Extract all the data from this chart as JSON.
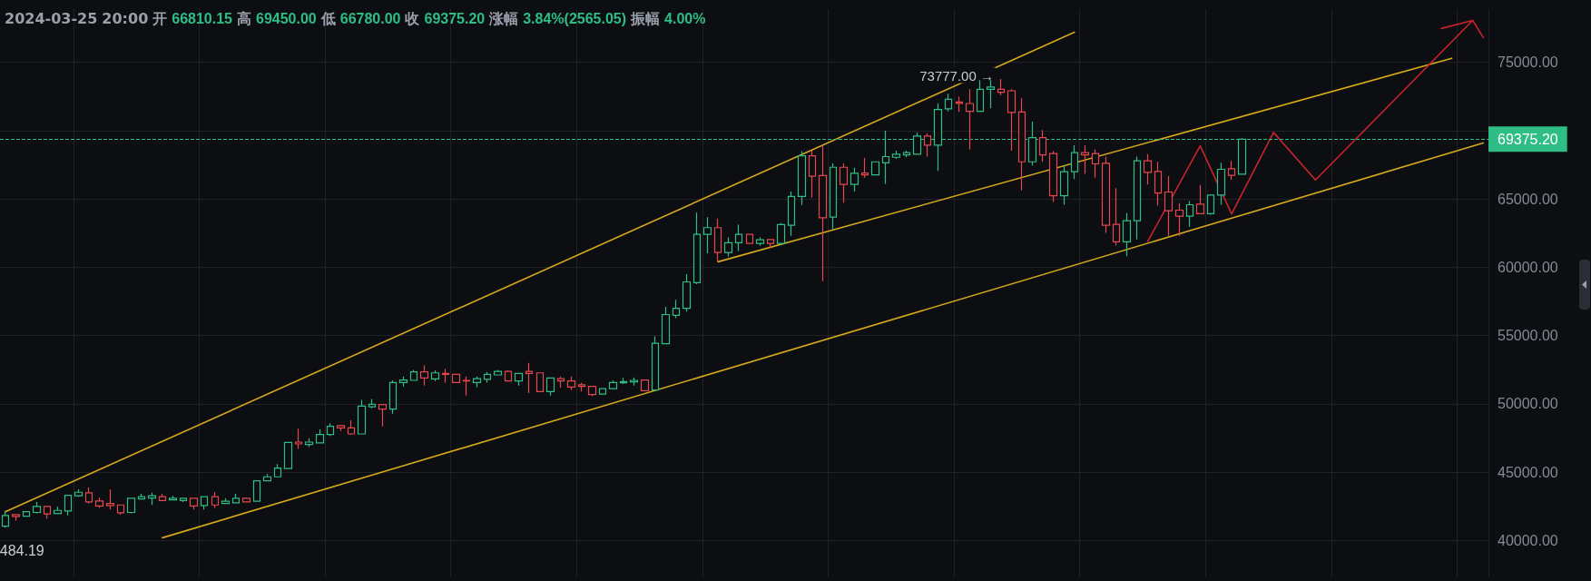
{
  "chart_data": {
    "type": "candlestick",
    "title": "2024-03-25 20:00 开 66810.15 高 69450.00 低 66780.00 收 69375.20 涨幅 3.84%(2565.05) 振幅 4.00%",
    "categories": [
      null,
      null,
      null,
      null,
      null,
      null,
      null,
      null,
      null,
      null,
      null,
      null,
      null,
      null,
      null,
      null,
      null,
      null,
      null,
      null,
      null,
      null,
      null,
      null,
      null,
      null,
      null,
      null,
      null,
      null,
      null,
      null,
      null,
      null,
      null,
      null,
      null,
      null,
      null,
      null,
      null,
      null,
      null,
      null,
      null,
      null,
      null,
      null,
      null,
      null,
      null,
      null,
      null,
      null,
      null,
      null,
      null,
      null,
      null,
      null,
      null,
      null,
      null,
      null,
      null,
      null,
      null,
      null,
      null,
      null,
      null,
      null,
      null,
      null,
      null,
      null,
      null,
      null,
      null,
      null,
      null,
      null,
      null,
      null,
      null,
      null,
      null,
      null,
      null,
      null,
      null,
      null,
      null,
      null,
      null,
      null,
      null,
      null,
      null,
      null,
      null,
      null,
      null,
      null,
      null,
      null,
      null,
      null,
      null,
      null,
      null,
      null,
      null,
      null,
      null,
      null,
      null,
      null,
      null,
      null,
      null,
      null,
      null,
      null,
      null,
      null,
      null,
      null,
      null,
      null,
      null,
      null,
      null,
      null,
      null,
      null,
      null,
      null,
      null,
      null,
      null,
      null
    ],
    "ylim": [
      37300,
      78900
    ],
    "yticks": [
      {
        "value": 40000,
        "label": "40000.00"
      },
      {
        "value": 45000,
        "label": "45000.00"
      },
      {
        "value": 50000,
        "label": "50000.00"
      },
      {
        "value": 55000,
        "label": "55000.00"
      },
      {
        "value": 60000,
        "label": "60000.00"
      },
      {
        "value": 65000,
        "label": "65000.00"
      },
      {
        "value": 70000,
        "label": null
      },
      {
        "value": 75000,
        "label": "75000.00"
      }
    ],
    "grid": true,
    "tick_labels": "y",
    "marker": "none",
    "line_style": "solid",
    "ref_lines": [
      {
        "axis": "y",
        "value": 69375.2,
        "label": "69375.20",
        "color": "#2ebd85",
        "line_style": "dashed"
      }
    ],
    "annotations": [
      "73777.00 →",
      "484.19"
    ],
    "series": [
      {
        "ohlc": [
          [
            41050,
            42160,
            40940,
            41830
          ],
          [
            41890,
            41940,
            41450,
            41760
          ],
          [
            41780,
            42150,
            41740,
            42110
          ],
          [
            42050,
            42820,
            41980,
            42490
          ],
          [
            42490,
            42530,
            41610,
            41940
          ],
          [
            41980,
            42490,
            41940,
            42200
          ],
          [
            42160,
            43330,
            41830,
            43310
          ],
          [
            43270,
            43750,
            43200,
            43530
          ],
          [
            43490,
            43880,
            42710,
            42820
          ],
          [
            42890,
            43150,
            42380,
            42530
          ],
          [
            42710,
            43750,
            42270,
            42560
          ],
          [
            42600,
            42600,
            41890,
            42030
          ],
          [
            42050,
            43090,
            41980,
            43090
          ],
          [
            43040,
            43420,
            43000,
            43200
          ],
          [
            43110,
            43490,
            42600,
            43270
          ],
          [
            43200,
            43420,
            42930,
            42930
          ],
          [
            42980,
            43260,
            42930,
            43090
          ],
          [
            42930,
            43090,
            42820,
            43090
          ],
          [
            43090,
            43090,
            42270,
            42530
          ],
          [
            42560,
            43200,
            42270,
            43200
          ],
          [
            43200,
            43550,
            42380,
            42600
          ],
          [
            42710,
            43090,
            42710,
            42870
          ],
          [
            42760,
            43420,
            42760,
            43090
          ],
          [
            43090,
            43150,
            42820,
            42820
          ],
          [
            42870,
            44370,
            42870,
            44370
          ],
          [
            44370,
            44860,
            44370,
            44660
          ],
          [
            44660,
            45590,
            44660,
            45300
          ],
          [
            45260,
            47180,
            45260,
            47180
          ],
          [
            47200,
            48180,
            46700,
            47070
          ],
          [
            47030,
            47470,
            46850,
            47200
          ],
          [
            47140,
            48140,
            47140,
            47760
          ],
          [
            47760,
            48580,
            47650,
            48350
          ],
          [
            48400,
            48470,
            48020,
            48240
          ],
          [
            48240,
            48800,
            47740,
            47800
          ],
          [
            47800,
            50300,
            47800,
            49840
          ],
          [
            49790,
            50350,
            49680,
            49970
          ],
          [
            49950,
            49950,
            48350,
            49620
          ],
          [
            49620,
            51720,
            49280,
            51560
          ],
          [
            51560,
            52010,
            51280,
            51740
          ],
          [
            51720,
            52490,
            51720,
            52340
          ],
          [
            52340,
            52820,
            51340,
            51900
          ],
          [
            51830,
            52450,
            51670,
            52270
          ],
          [
            52230,
            52560,
            51560,
            52160
          ],
          [
            52160,
            52160,
            51560,
            51560
          ],
          [
            51720,
            52010,
            50610,
            51680
          ],
          [
            51560,
            52010,
            51230,
            51850
          ],
          [
            51790,
            52340,
            51560,
            52160
          ],
          [
            52120,
            52490,
            52120,
            52380
          ],
          [
            52380,
            52450,
            51680,
            51680
          ],
          [
            51680,
            52230,
            51340,
            52230
          ],
          [
            52380,
            53000,
            50790,
            52230
          ],
          [
            52270,
            52300,
            50900,
            50900
          ],
          [
            50900,
            51900,
            50610,
            51900
          ],
          [
            51850,
            52010,
            51190,
            51680
          ],
          [
            51680,
            52010,
            51010,
            51230
          ],
          [
            51390,
            51560,
            50900,
            51280
          ],
          [
            51280,
            51280,
            50570,
            50680
          ],
          [
            50720,
            51120,
            50720,
            51120
          ],
          [
            51120,
            51720,
            51120,
            51560
          ],
          [
            51540,
            51900,
            51450,
            51630
          ],
          [
            51610,
            51940,
            51340,
            51720
          ],
          [
            51740,
            51740,
            50970,
            50970
          ],
          [
            51010,
            54950,
            51010,
            54440
          ],
          [
            54400,
            57100,
            54400,
            56540
          ],
          [
            56480,
            57610,
            56280,
            56990
          ],
          [
            56990,
            59490,
            56760,
            58930
          ],
          [
            58870,
            64000,
            58760,
            62410
          ],
          [
            62410,
            63670,
            61020,
            62900
          ],
          [
            62900,
            63560,
            60420,
            61080
          ],
          [
            61080,
            62190,
            60790,
            61790
          ],
          [
            61790,
            63120,
            61190,
            62410
          ],
          [
            62410,
            62410,
            61750,
            61750
          ],
          [
            61750,
            62190,
            61590,
            62010
          ],
          [
            62030,
            62030,
            61410,
            61750
          ],
          [
            61750,
            63230,
            61750,
            63120
          ],
          [
            63070,
            65550,
            62300,
            65180
          ],
          [
            65180,
            68500,
            64560,
            68160
          ],
          [
            68160,
            68540,
            65110,
            66660
          ],
          [
            66720,
            68890,
            58980,
            63630
          ],
          [
            63670,
            67610,
            62790,
            67320
          ],
          [
            67320,
            67610,
            64730,
            66060
          ],
          [
            66060,
            67280,
            65550,
            66880
          ],
          [
            66900,
            68010,
            66550,
            66770
          ],
          [
            66770,
            67720,
            66770,
            67720
          ],
          [
            67650,
            70000,
            66110,
            68100
          ],
          [
            68050,
            68540,
            67940,
            68270
          ],
          [
            68230,
            68540,
            68050,
            68390
          ],
          [
            68270,
            69870,
            68270,
            69600
          ],
          [
            69600,
            69820,
            68100,
            68940
          ],
          [
            68940,
            72000,
            67060,
            71550
          ],
          [
            71600,
            72700,
            71400,
            72300
          ],
          [
            72100,
            72480,
            71370,
            72000
          ],
          [
            71990,
            73030,
            68610,
            71420
          ],
          [
            71420,
            73700,
            71420,
            73030
          ],
          [
            73030,
            73700,
            71640,
            73190
          ],
          [
            73030,
            73777,
            72590,
            72810
          ],
          [
            72920,
            73030,
            68540,
            71330
          ],
          [
            71370,
            72370,
            65620,
            67720
          ],
          [
            67720,
            70660,
            67430,
            69490
          ],
          [
            69490,
            70050,
            67720,
            68230
          ],
          [
            68320,
            68500,
            64780,
            65240
          ],
          [
            65240,
            67430,
            64580,
            66990
          ],
          [
            66990,
            68940,
            66460,
            68390
          ],
          [
            68390,
            68940,
            66840,
            68230
          ],
          [
            68320,
            68610,
            66550,
            67570
          ],
          [
            67610,
            68100,
            62520,
            63080
          ],
          [
            63140,
            65800,
            61590,
            61860
          ],
          [
            61860,
            63960,
            60800,
            63410
          ],
          [
            63410,
            68100,
            62030,
            67790
          ],
          [
            67790,
            68280,
            66060,
            66950
          ],
          [
            67010,
            67720,
            64510,
            65440
          ],
          [
            65510,
            66680,
            62300,
            64140
          ],
          [
            64180,
            64690,
            62300,
            63740
          ],
          [
            63740,
            64850,
            62960,
            64580
          ],
          [
            64620,
            66020,
            63920,
            63920
          ],
          [
            63920,
            65290,
            63850,
            65290
          ],
          [
            65290,
            67650,
            64580,
            67170
          ],
          [
            67210,
            67790,
            66400,
            66730
          ],
          [
            66810.15,
            69450,
            66780,
            69375.2
          ],
          null,
          null,
          null,
          null,
          null,
          null,
          null,
          null,
          null,
          null,
          null,
          null,
          null,
          null,
          null,
          null,
          null,
          null,
          null,
          null,
          null,
          null,
          null
        ],
        "colors": [
          "#2ebd85",
          "#e5474d",
          "#2ebd85",
          "#2ebd85",
          "#e5474d",
          "#2ebd85",
          "#2ebd85",
          "#2ebd85",
          "#e5474d",
          "#e5474d",
          "#e5474d",
          "#e5474d",
          "#2ebd85",
          "#2ebd85",
          "#2ebd85",
          "#e5474d",
          "#2ebd85",
          "#2ebd85",
          "#e5474d",
          "#2ebd85",
          "#e5474d",
          "#2ebd85",
          "#2ebd85",
          "#e5474d",
          "#2ebd85",
          "#2ebd85",
          "#2ebd85",
          "#2ebd85",
          "#e5474d",
          "#2ebd85",
          "#2ebd85",
          "#2ebd85",
          "#e5474d",
          "#e5474d",
          "#2ebd85",
          "#2ebd85",
          "#e5474d",
          "#2ebd85",
          "#2ebd85",
          "#2ebd85",
          "#e5474d",
          "#2ebd85",
          "#e5474d",
          "#e5474d",
          "#e5474d",
          "#2ebd85",
          "#2ebd85",
          "#2ebd85",
          "#e5474d",
          "#2ebd85",
          "#e5474d",
          "#e5474d",
          "#2ebd85",
          "#e5474d",
          "#e5474d",
          "#e5474d",
          "#e5474d",
          "#2ebd85",
          "#2ebd85",
          "#2ebd85",
          "#2ebd85",
          "#e5474d",
          "#2ebd85",
          "#2ebd85",
          "#2ebd85",
          "#2ebd85",
          "#2ebd85",
          "#2ebd85",
          "#e5474d",
          "#2ebd85",
          "#2ebd85",
          "#e5474d",
          "#2ebd85",
          "#e5474d",
          "#2ebd85",
          "#2ebd85",
          "#2ebd85",
          "#e5474d",
          "#e5474d",
          "#2ebd85",
          "#e5474d",
          "#2ebd85",
          "#e5474d",
          "#2ebd85",
          "#2ebd85",
          "#2ebd85",
          "#2ebd85",
          "#2ebd85",
          "#e5474d",
          "#2ebd85",
          "#2ebd85",
          "#e5474d",
          "#e5474d",
          "#2ebd85",
          "#2ebd85",
          "#e5474d",
          "#e5474d",
          "#e5474d",
          "#2ebd85",
          "#e5474d",
          "#e5474d",
          "#2ebd85",
          "#2ebd85",
          "#e5474d",
          "#e5474d",
          "#e5474d",
          "#e5474d",
          "#2ebd85",
          "#2ebd85",
          "#e5474d",
          "#e5474d",
          "#e5474d",
          "#e5474d",
          "#2ebd85",
          "#e5474d",
          "#2ebd85",
          "#2ebd85",
          "#e5474d",
          "#2ebd85",
          null,
          null,
          null,
          null,
          null,
          null,
          null,
          null,
          null,
          null,
          null,
          null,
          null,
          null,
          null,
          null,
          null,
          null,
          null,
          null,
          null,
          null,
          null
        ]
      },
      {
        "type": "line",
        "color": "#d6a91a",
        "values": [
          42100,
          null,
          null,
          null,
          null,
          null,
          null,
          null,
          null,
          null,
          null,
          null,
          null,
          null,
          null,
          null,
          null,
          null,
          null,
          null,
          null,
          null,
          null,
          null,
          null,
          null,
          null,
          null,
          null,
          null,
          null,
          null,
          null,
          null,
          null,
          null,
          null,
          null,
          null,
          null,
          null,
          null,
          null,
          null,
          null,
          null,
          null,
          null,
          null,
          null,
          null,
          null,
          null,
          null,
          null,
          null,
          null,
          null,
          null,
          null,
          null,
          null,
          null,
          null,
          null,
          null,
          null,
          null,
          null,
          null,
          null,
          null,
          null,
          null,
          null,
          null,
          null,
          null,
          null,
          null,
          null,
          null,
          null,
          null,
          null,
          null,
          null,
          null,
          null,
          null,
          null,
          null,
          null,
          null,
          null,
          null,
          null,
          null,
          null,
          null,
          null,
          null,
          77200,
          null,
          null,
          null,
          null,
          null,
          null,
          null,
          null,
          null,
          null,
          null,
          null,
          null,
          null,
          null,
          null,
          null,
          null,
          null,
          null,
          null,
          null,
          null,
          null,
          null,
          null,
          null,
          null,
          null,
          null,
          null,
          null,
          null,
          null,
          null,
          null,
          null,
          null,
          null
        ]
      },
      {
        "type": "line",
        "color": "#d6a91a",
        "values": [
          null,
          null,
          null,
          null,
          null,
          null,
          null,
          null,
          null,
          null,
          null,
          null,
          null,
          null,
          null,
          null,
          null,
          null,
          null,
          null,
          null,
          null,
          null,
          null,
          null,
          null,
          null,
          null,
          null,
          null,
          null,
          null,
          null,
          null,
          null,
          null,
          null,
          null,
          null,
          null,
          null,
          null,
          null,
          null,
          null,
          null,
          null,
          null,
          null,
          null,
          null,
          null,
          null,
          null,
          null,
          null,
          null,
          null,
          null,
          null,
          null,
          null,
          null,
          null,
          null,
          null,
          null,
          null,
          60400,
          null,
          null,
          null,
          null,
          null,
          null,
          null,
          null,
          null,
          null,
          null,
          null,
          null,
          null,
          null,
          null,
          null,
          null,
          null,
          null,
          null,
          null,
          null,
          null,
          null,
          null,
          null,
          null,
          null,
          null,
          null,
          null,
          null,
          null,
          null,
          null,
          null,
          null,
          null,
          null,
          null,
          null,
          null,
          null,
          null,
          null,
          null,
          null,
          null,
          null,
          null,
          null,
          null,
          null,
          null,
          null,
          null,
          null,
          null,
          null,
          null,
          null,
          null,
          null,
          null,
          null,
          null,
          null,
          null,
          75300,
          null,
          null,
          null
        ]
      },
      {
        "type": "line",
        "color": "#d6a91a",
        "values": [
          null,
          null,
          null,
          null,
          null,
          null,
          null,
          null,
          null,
          null,
          null,
          null,
          null,
          null,
          null,
          40200,
          null,
          null,
          null,
          null,
          null,
          null,
          null,
          null,
          null,
          null,
          null,
          null,
          null,
          null,
          null,
          null,
          null,
          null,
          null,
          null,
          null,
          null,
          null,
          null,
          null,
          null,
          null,
          null,
          null,
          null,
          null,
          null,
          null,
          null,
          null,
          null,
          null,
          null,
          null,
          null,
          null,
          null,
          null,
          null,
          null,
          null,
          null,
          null,
          null,
          null,
          null,
          null,
          null,
          null,
          null,
          null,
          null,
          null,
          null,
          null,
          null,
          null,
          null,
          null,
          null,
          null,
          null,
          null,
          null,
          null,
          null,
          null,
          null,
          null,
          null,
          null,
          null,
          null,
          null,
          null,
          null,
          null,
          null,
          null,
          null,
          null,
          null,
          null,
          null,
          null,
          null,
          null,
          null,
          null,
          null,
          null,
          null,
          null,
          null,
          null,
          null,
          null,
          null,
          null,
          null,
          null,
          null,
          null,
          null,
          null,
          null,
          null,
          null,
          null,
          null,
          null,
          null,
          null,
          null,
          null,
          null,
          null,
          null,
          null,
          null,
          69100
        ]
      },
      {
        "type": "line",
        "color": "#c8232c",
        "values": [
          null,
          null,
          null,
          null,
          null,
          null,
          null,
          null,
          null,
          null,
          null,
          null,
          null,
          null,
          null,
          null,
          null,
          null,
          null,
          null,
          null,
          null,
          null,
          null,
          null,
          null,
          null,
          null,
          null,
          null,
          null,
          null,
          null,
          null,
          null,
          null,
          null,
          null,
          null,
          null,
          null,
          null,
          null,
          null,
          null,
          null,
          null,
          null,
          null,
          null,
          null,
          null,
          null,
          null,
          null,
          null,
          null,
          null,
          null,
          null,
          null,
          null,
          null,
          null,
          null,
          null,
          null,
          null,
          null,
          null,
          null,
          null,
          null,
          null,
          null,
          null,
          null,
          null,
          null,
          null,
          null,
          null,
          null,
          null,
          null,
          null,
          null,
          null,
          null,
          null,
          null,
          null,
          null,
          null,
          null,
          null,
          null,
          null,
          null,
          null,
          null,
          null,
          null,
          null,
          null,
          null,
          null,
          null,
          null,
          61900,
          null,
          null,
          null,
          null,
          68890,
          null,
          null,
          63910,
          null,
          null,
          null,
          69870,
          null,
          null,
          null,
          66390,
          null,
          null,
          null,
          null,
          null,
          null,
          null,
          null,
          null,
          null,
          null,
          null,
          null,
          null,
          78070,
          null
        ]
      },
      {
        "type": "line",
        "color": "#c8232c",
        "values": [
          null,
          null,
          null,
          null,
          null,
          null,
          null,
          null,
          null,
          null,
          null,
          null,
          null,
          null,
          null,
          null,
          null,
          null,
          null,
          null,
          null,
          null,
          null,
          null,
          null,
          null,
          null,
          null,
          null,
          null,
          null,
          null,
          null,
          null,
          null,
          null,
          null,
          null,
          null,
          null,
          null,
          null,
          null,
          null,
          null,
          null,
          null,
          null,
          null,
          null,
          null,
          null,
          null,
          null,
          null,
          null,
          null,
          null,
          null,
          null,
          null,
          null,
          null,
          null,
          null,
          null,
          null,
          null,
          null,
          null,
          null,
          null,
          null,
          null,
          null,
          null,
          null,
          null,
          null,
          null,
          null,
          null,
          null,
          null,
          null,
          null,
          null,
          null,
          null,
          null,
          null,
          null,
          null,
          null,
          null,
          null,
          null,
          null,
          null,
          null,
          null,
          null,
          null,
          null,
          null,
          null,
          null,
          null,
          null,
          null,
          null,
          null,
          null,
          null,
          null,
          null,
          null,
          null,
          null,
          null,
          null,
          null,
          null,
          null,
          null,
          null,
          null,
          null,
          null,
          null,
          null,
          null,
          null,
          null,
          null,
          null,
          null,
          77480,
          null,
          null,
          78070,
          76810
        ]
      }
    ]
  }
}
